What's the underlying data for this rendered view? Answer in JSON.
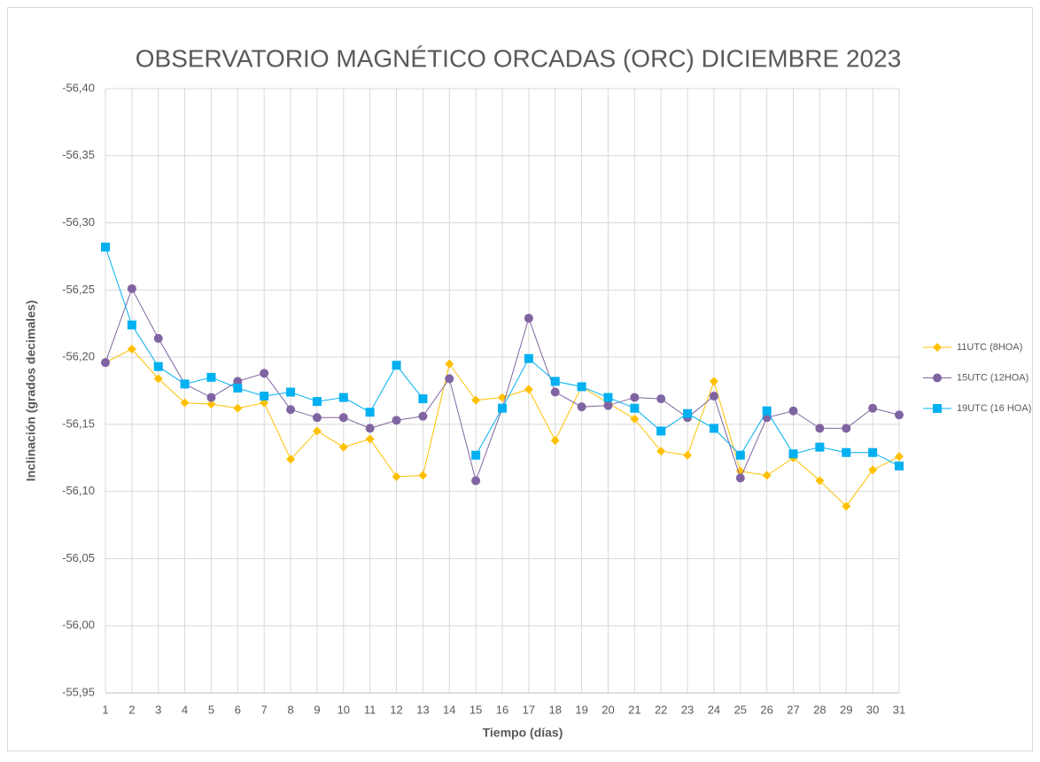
{
  "chart_data": {
    "type": "line",
    "title": "OBSERVATORIO MAGNÉTICO ORCADAS (ORC) DICIEMBRE 2023",
    "x_label": "Tiempo (días)",
    "y_label": "Inclinación (grados decimales)",
    "categories": [
      "1",
      "2",
      "3",
      "4",
      "5",
      "6",
      "7",
      "8",
      "9",
      "10",
      "11",
      "12",
      "13",
      "14",
      "15",
      "16",
      "17",
      "18",
      "19",
      "20",
      "21",
      "22",
      "23",
      "24",
      "25",
      "26",
      "27",
      "28",
      "29",
      "30",
      "31"
    ],
    "ylim": [
      -55.95,
      -56.4
    ],
    "yticks": [
      {
        "value": -55.95,
        "label": "-55,95"
      },
      {
        "value": -56.0,
        "label": "-56,00"
      },
      {
        "value": -56.05,
        "label": "-56,05"
      },
      {
        "value": -56.1,
        "label": "-56,10"
      },
      {
        "value": -56.15,
        "label": "-56,15"
      },
      {
        "value": -56.2,
        "label": "-56,20"
      },
      {
        "value": -56.25,
        "label": "-56,25"
      },
      {
        "value": -56.3,
        "label": "-56,30"
      },
      {
        "value": -56.35,
        "label": "-56,35"
      },
      {
        "value": -56.4,
        "label": "-56,40"
      }
    ],
    "grid": true,
    "legend": "right",
    "series": [
      {
        "name": "11UTC (8HOA)",
        "color": "#FFC000",
        "marker": "diamond",
        "values": [
          -56.196,
          -56.206,
          -56.184,
          -56.166,
          -56.165,
          -56.162,
          -56.166,
          -56.124,
          -56.145,
          -56.133,
          -56.139,
          -56.111,
          -56.112,
          -56.195,
          -56.168,
          -56.17,
          -56.176,
          -56.138,
          -56.178,
          -56.166,
          -56.154,
          -56.13,
          -56.127,
          -56.182,
          -56.115,
          -56.112,
          -56.125,
          -56.108,
          -56.089,
          -56.116,
          -56.126
        ]
      },
      {
        "name": "15UTC (12HOA)",
        "color": "#8064A2",
        "marker": "circle",
        "values": [
          -56.196,
          -56.251,
          -56.214,
          -56.18,
          -56.17,
          -56.182,
          -56.188,
          -56.161,
          -56.155,
          -56.155,
          -56.147,
          -56.153,
          -56.156,
          -56.184,
          -56.108,
          -56.162,
          -56.229,
          -56.174,
          -56.163,
          -56.164,
          -56.17,
          -56.169,
          -56.155,
          -56.171,
          -56.11,
          -56.155,
          -56.16,
          -56.147,
          -56.147,
          -56.162,
          -56.157
        ]
      },
      {
        "name": "19UTC (16 HOA)",
        "color": "#00B0F0",
        "marker": "square",
        "values": [
          -56.282,
          -56.224,
          -56.193,
          -56.18,
          -56.185,
          -56.177,
          -56.171,
          -56.174,
          -56.167,
          -56.17,
          -56.159,
          -56.194,
          -56.169,
          null,
          -56.127,
          -56.162,
          -56.199,
          -56.182,
          -56.178,
          -56.17,
          -56.162,
          -56.145,
          -56.158,
          -56.147,
          -56.127,
          -56.16,
          -56.128,
          -56.133,
          -56.129,
          -56.129,
          -56.119
        ]
      }
    ]
  }
}
